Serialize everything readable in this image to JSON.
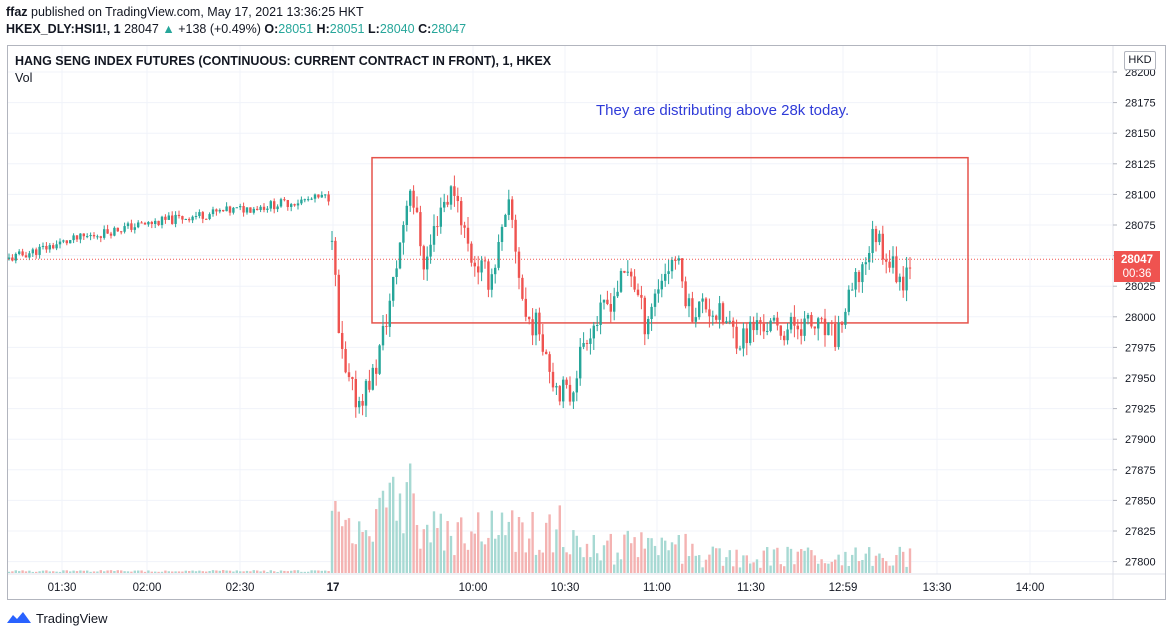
{
  "header": {
    "author": "ffaz",
    "published": "published on TradingView.com, May 17, 2021 13:36:25 HKT",
    "symbol": "HKEX_DLY:HSI1!, 1",
    "last": "28047",
    "change": "+138 (+0.49%)",
    "o_label": "O:",
    "o": "28051",
    "h_label": "H:",
    "h": "28051",
    "l_label": "L:",
    "l": "28040",
    "c_label": "C:",
    "c": "28047"
  },
  "chart_title": "HANG SENG INDEX FUTURES (CONTINUOUS: CURRENT CONTRACT IN FRONT), 1, HKEX",
  "volume_label": "Vol",
  "annotation_text": "They are distributing above 28k today.",
  "currency": "HKD",
  "price_label": {
    "price": "28047",
    "countdown": "00:36"
  },
  "footer": {
    "brand": "TradingView",
    "logo_icon": "tradingview-logo-icon"
  },
  "colors": {
    "up": "#26a69a",
    "down": "#ef5350",
    "annotation_box": "#e5534b",
    "annotation_text": "#2f3bd8",
    "price_line": "#ef5350"
  },
  "chart_data": {
    "type": "candlestick",
    "y_ticks": [
      "28200",
      "28175",
      "28150",
      "28125",
      "28100",
      "28075",
      "28050",
      "28025",
      "28000",
      "27975",
      "27950",
      "27925",
      "27900",
      "27875",
      "27850",
      "27825",
      "27800"
    ],
    "x_ticks": [
      "01:30",
      "02:00",
      "02:30",
      "17",
      "10:00",
      "10:30",
      "11:00",
      "11:30",
      "12:59",
      "13:30",
      "14:00"
    ],
    "price_range": [
      27925,
      28125
    ],
    "key_prices": {
      "overnight_close": 28100,
      "gap_down_low": 27925,
      "morning_high": 28135,
      "afternoon_high": 28075,
      "last": 28047
    },
    "annotation_box_range": [
      27995,
      28130
    ],
    "current_price": 28047,
    "grid": true
  }
}
